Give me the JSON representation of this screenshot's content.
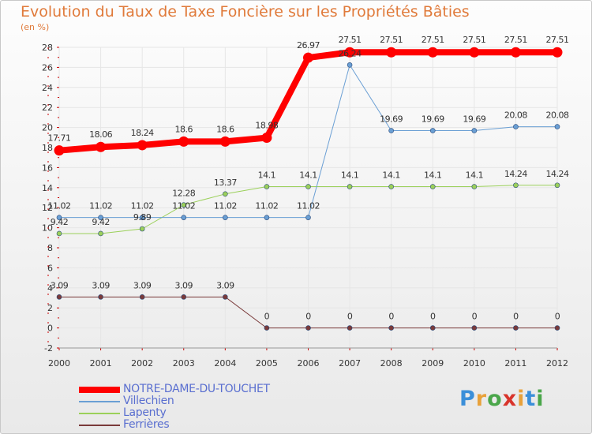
{
  "header": {
    "title": "Evolution du Taux de Taxe Foncière sur les Propriétés Bâties",
    "unit": "(en %)"
  },
  "logo": {
    "letters": [
      "P",
      "r",
      "o",
      "x",
      "i",
      "t",
      "i"
    ],
    "colors": [
      "#3b8fd9",
      "#e8a13a",
      "#4aa64a",
      "#d8342b",
      "#e8a13a",
      "#3b8fd9",
      "#4aa64a"
    ]
  },
  "colors": {
    "title": "#e07a3a",
    "legend_text": "#5a6fd0",
    "grid": "#e6e6e6"
  },
  "chart_data": {
    "type": "line",
    "title": "Evolution du Taux de Taxe Foncière sur les Propriétés Bâties",
    "ylabel": "(en %)",
    "xlabel": "",
    "x": [
      "2000",
      "2001",
      "2002",
      "2003",
      "2004",
      "2005",
      "2006",
      "2007",
      "2008",
      "2009",
      "2010",
      "2011",
      "2012"
    ],
    "ylim": [
      -2,
      28
    ],
    "yticks": [
      "-2",
      "0",
      "2",
      "4",
      "6",
      "8",
      "10",
      "12",
      "14",
      "16",
      "18",
      "20",
      "22",
      "24",
      "26",
      "28"
    ],
    "grid": true,
    "legend_position": "bottom-left",
    "series": [
      {
        "name": "NOTRE-DAME-DU-TOUCHET",
        "color": "#ff0000",
        "values": [
          17.71,
          18.06,
          18.24,
          18.6,
          18.6,
          18.98,
          26.97,
          27.51,
          27.51,
          27.51,
          27.51,
          27.51,
          27.51
        ],
        "labels": [
          "17.71",
          "18.06",
          "18.24",
          "18.6",
          "18.6",
          "18.98",
          "26.97",
          "27.51",
          "27.51",
          "27.51",
          "27.51",
          "27.51",
          "27.51"
        ]
      },
      {
        "name": "Villechien",
        "color": "#6a9fd4",
        "values": [
          11.02,
          11.02,
          11.02,
          11.02,
          11.02,
          11.02,
          11.02,
          26.24,
          19.69,
          19.69,
          19.69,
          20.08,
          20.08
        ],
        "labels": [
          "11.02",
          "11.02",
          "11.02",
          "11.02",
          "11.02",
          "11.02",
          "11.02",
          "26.24",
          "19.69",
          "19.69",
          "19.69",
          "20.08",
          "20.08"
        ]
      },
      {
        "name": "Lapenty",
        "color": "#9bd05a",
        "values": [
          9.42,
          9.42,
          9.89,
          12.28,
          13.37,
          14.1,
          14.1,
          14.1,
          14.1,
          14.1,
          14.1,
          14.24,
          14.24
        ],
        "labels": [
          "9.42",
          "9.42",
          "9.89",
          "12.28",
          "13.37",
          "14.1",
          "14.1",
          "14.1",
          "14.1",
          "14.1",
          "14.1",
          "14.24",
          "14.24"
        ]
      },
      {
        "name": "Ferrières",
        "color": "#7a3a3a",
        "values": [
          3.09,
          3.09,
          3.09,
          3.09,
          3.09,
          0,
          0,
          0,
          0,
          0,
          0,
          0,
          0
        ],
        "labels": [
          "3.09",
          "3.09",
          "3.09",
          "3.09",
          "3.09",
          "0",
          "0",
          "0",
          "0",
          "0",
          "0",
          "0",
          "0"
        ]
      }
    ]
  }
}
